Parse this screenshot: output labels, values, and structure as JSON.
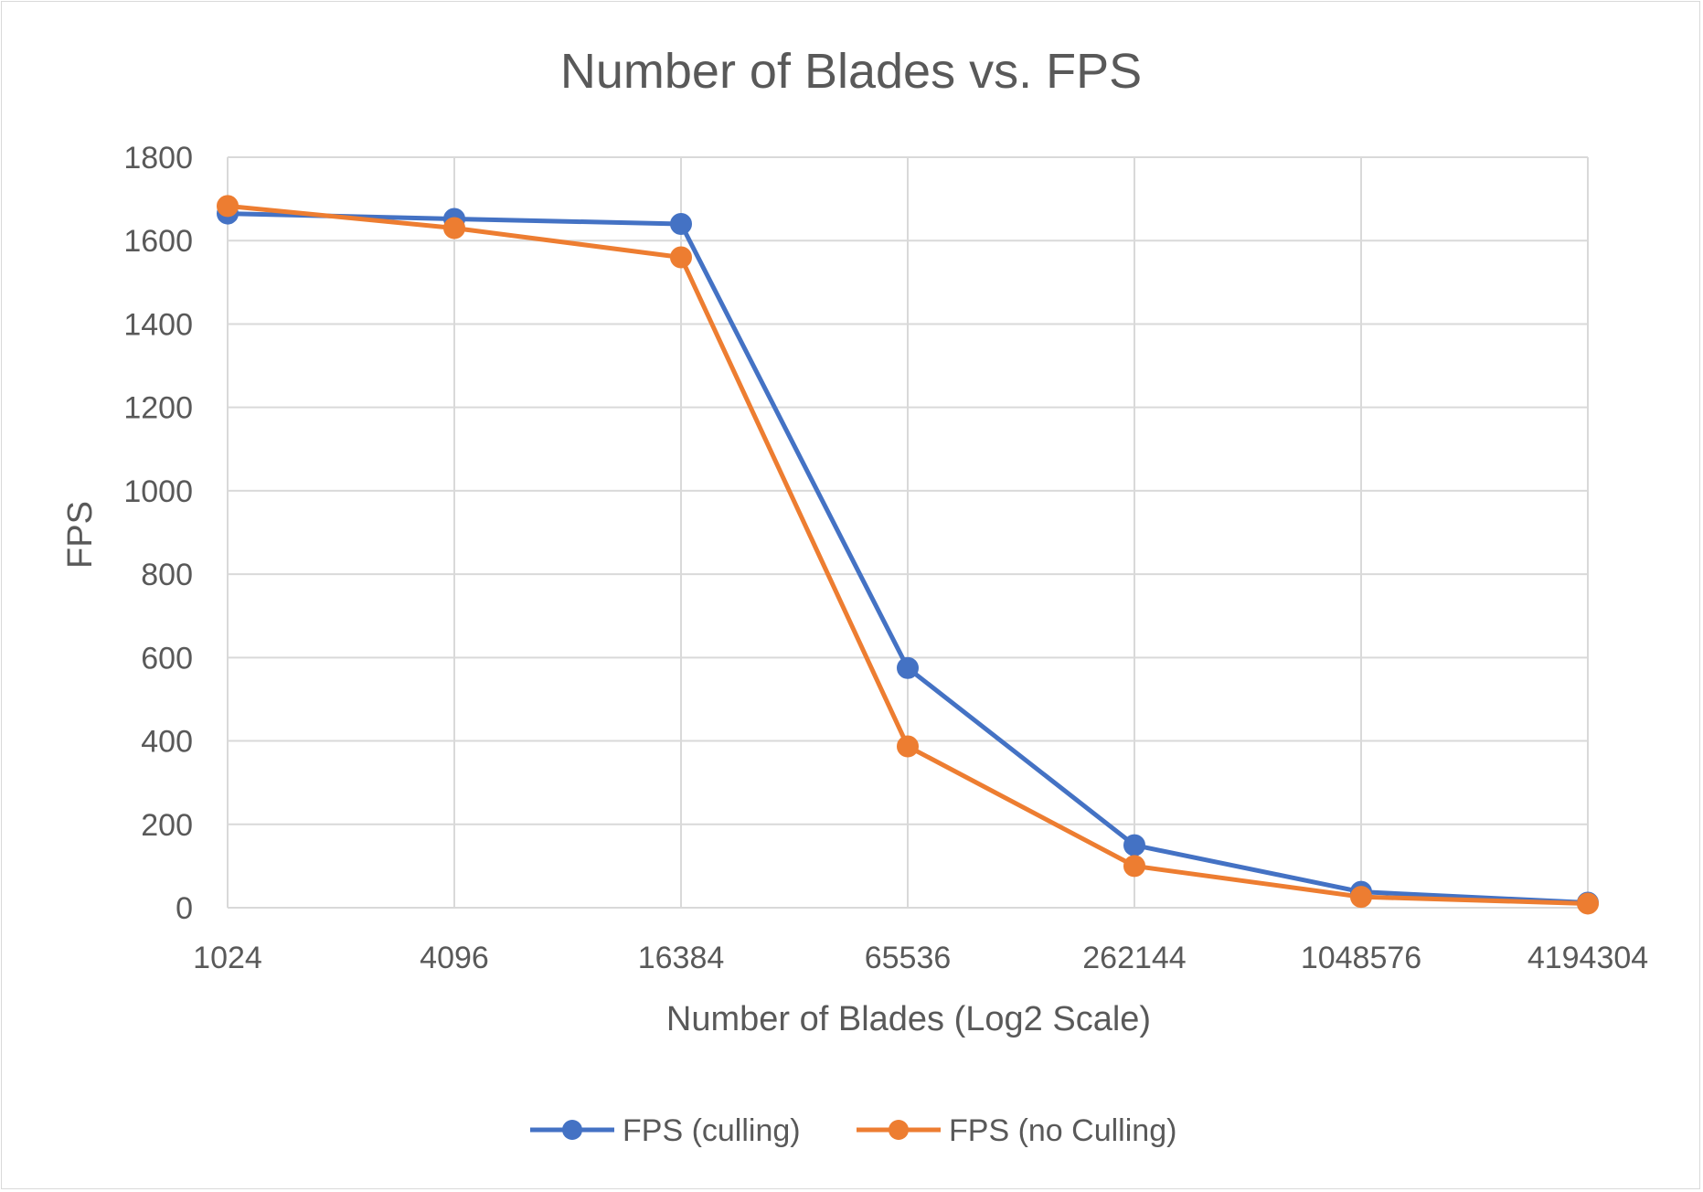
{
  "chart_data": {
    "type": "line",
    "title": "Number of Blades vs. FPS",
    "xlabel": "Number of Blades (Log2 Scale)",
    "ylabel": "FPS",
    "x_scale": "log2",
    "categories": [
      "1024",
      "4096",
      "16384",
      "65536",
      "262144",
      "1048576",
      "4194304"
    ],
    "ylim": [
      0,
      1800
    ],
    "yticks": [
      "0",
      "200",
      "400",
      "600",
      "800",
      "1000",
      "1200",
      "1400",
      "1600",
      "1800"
    ],
    "grid": true,
    "legend_position": "bottom",
    "series": [
      {
        "name": "FPS (culling)",
        "color": "#4472C4",
        "values": [
          1665,
          1652,
          1640,
          575,
          150,
          38,
          12
        ]
      },
      {
        "name": "FPS (no Culling)",
        "color": "#ED7D31",
        "values": [
          1683,
          1630,
          1560,
          387,
          100,
          26,
          10
        ]
      }
    ]
  }
}
